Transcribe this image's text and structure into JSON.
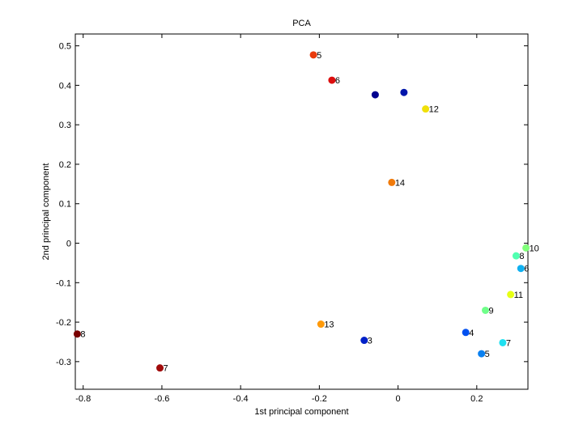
{
  "chart_data": {
    "type": "scatter",
    "title": "PCA",
    "xlabel": "1st principal component",
    "ylabel": "2nd principal component",
    "xlim": [
      -0.82,
      0.33
    ],
    "ylim": [
      -0.37,
      0.53
    ],
    "xticks": [
      -0.8,
      -0.6,
      -0.4,
      -0.2,
      0,
      0.2
    ],
    "yticks": [
      -0.3,
      -0.2,
      -0.1,
      0,
      0.1,
      0.2,
      0.3,
      0.4,
      0.5
    ],
    "xtick_labels": [
      "-0.8",
      "-0.6",
      "-0.4",
      "-0.2",
      "0",
      "0.2"
    ],
    "ytick_labels": [
      "-0.3",
      "-0.2",
      "-0.1",
      "0",
      "0.1",
      "0.2",
      "0.3",
      "0.4",
      "0.5"
    ],
    "grid": false,
    "points": [
      {
        "x": -0.215,
        "y": 0.477,
        "color": "#e83a0c",
        "label": "5"
      },
      {
        "x": -0.168,
        "y": 0.413,
        "color": "#dc0e0e",
        "label": "6"
      },
      {
        "x": -0.058,
        "y": 0.376,
        "color": "#00008f",
        "label": ""
      },
      {
        "x": 0.015,
        "y": 0.382,
        "color": "#0016ab",
        "label": ""
      },
      {
        "x": 0.07,
        "y": 0.34,
        "color": "#f0e00a",
        "label": "12"
      },
      {
        "x": -0.016,
        "y": 0.154,
        "color": "#f07a0a",
        "label": "14"
      },
      {
        "x": 0.325,
        "y": -0.012,
        "color": "#80ff7a",
        "label": "10"
      },
      {
        "x": 0.3,
        "y": -0.032,
        "color": "#50ffb0",
        "label": "8"
      },
      {
        "x": 0.312,
        "y": -0.064,
        "color": "#10b0f0",
        "label": "6"
      },
      {
        "x": 0.286,
        "y": -0.13,
        "color": "#e6ff14",
        "label": "11"
      },
      {
        "x": 0.222,
        "y": -0.17,
        "color": "#70ff8a",
        "label": "9"
      },
      {
        "x": 0.172,
        "y": -0.226,
        "color": "#0050f0",
        "label": "4"
      },
      {
        "x": 0.266,
        "y": -0.252,
        "color": "#20e0f0",
        "label": "7"
      },
      {
        "x": 0.212,
        "y": -0.28,
        "color": "#0a80f0",
        "label": "5"
      },
      {
        "x": -0.196,
        "y": -0.205,
        "color": "#ff9a0a",
        "label": "13"
      },
      {
        "x": -0.086,
        "y": -0.246,
        "color": "#0020c8",
        "label": "3"
      },
      {
        "x": -0.815,
        "y": -0.23,
        "color": "#7a0000",
        "label": "8"
      },
      {
        "x": -0.605,
        "y": -0.316,
        "color": "#a00a0a",
        "label": "7"
      }
    ]
  }
}
